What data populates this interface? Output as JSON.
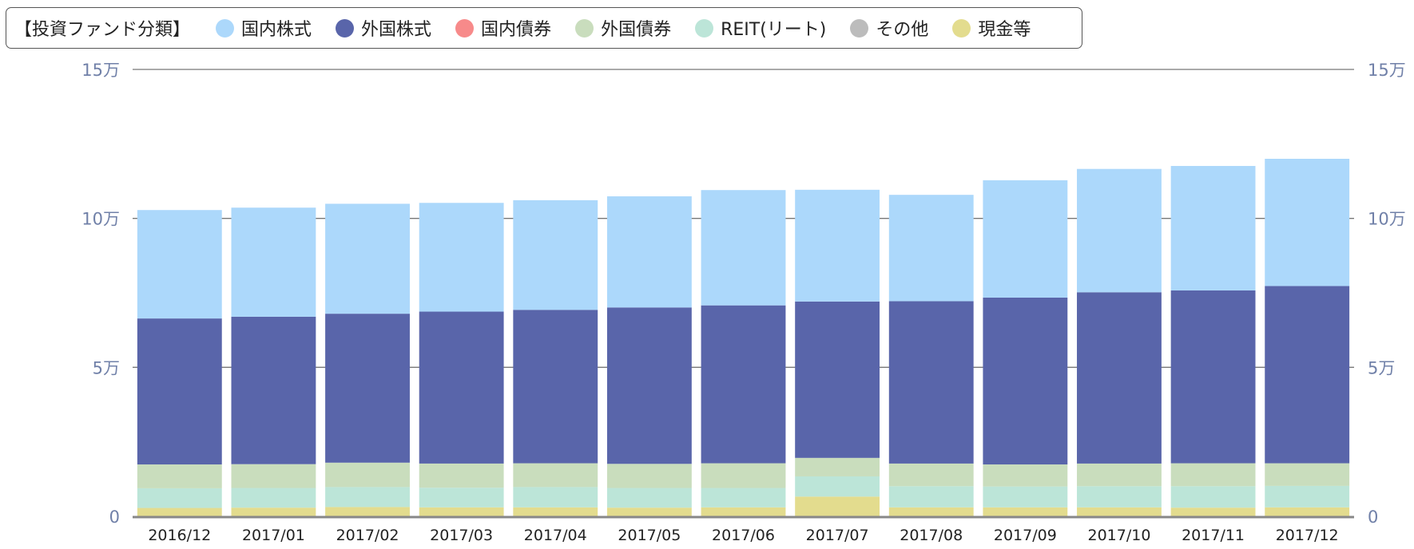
{
  "legend": {
    "title": "【投資ファンド分類】",
    "items": [
      {
        "label": "国内株式",
        "color": "#acd8fb"
      },
      {
        "label": "外国株式",
        "color": "#5965aa"
      },
      {
        "label": "国内債券",
        "color": "#f78a8a"
      },
      {
        "label": "外国債券",
        "color": "#c9ddbd"
      },
      {
        "label": "REIT(リート)",
        "color": "#bce5d8"
      },
      {
        "label": "その他",
        "color": "#bcbcbc"
      },
      {
        "label": "現金等",
        "color": "#e3dc8e"
      }
    ]
  },
  "chart_data": {
    "type": "bar",
    "stacked": true,
    "categories": [
      "2016/12",
      "2017/01",
      "2017/02",
      "2017/03",
      "2017/04",
      "2017/05",
      "2017/06",
      "2017/07",
      "2017/08",
      "2017/09",
      "2017/10",
      "2017/11",
      "2017/12"
    ],
    "y_ticks": [
      "0",
      "5万",
      "10万",
      "15万"
    ],
    "y_tick_values": [
      0,
      50000,
      100000,
      150000
    ],
    "ylim": [
      0,
      150000
    ],
    "grid": true,
    "legend_position": "top-left",
    "series": [
      {
        "name": "現金等",
        "color": "#e3dc8e",
        "values": [
          2800,
          2900,
          3100,
          3000,
          3000,
          2900,
          3000,
          6600,
          3000,
          3000,
          3000,
          2900,
          3000
        ]
      },
      {
        "name": "その他",
        "color": "#bcbcbc",
        "values": [
          0,
          0,
          0,
          0,
          0,
          0,
          0,
          0,
          0,
          0,
          0,
          0,
          0
        ]
      },
      {
        "name": "REIT(リート)",
        "color": "#bce5d8",
        "values": [
          6600,
          6600,
          6700,
          6600,
          6800,
          6600,
          6500,
          6800,
          7100,
          7000,
          7100,
          7200,
          7200
        ]
      },
      {
        "name": "外国債券",
        "color": "#c9ddbd",
        "values": [
          8000,
          8000,
          8200,
          8100,
          8000,
          8100,
          8300,
          6200,
          7600,
          7400,
          7600,
          7700,
          7600
        ]
      },
      {
        "name": "国内債券",
        "color": "#f78a8a",
        "values": [
          0,
          0,
          0,
          0,
          0,
          0,
          0,
          0,
          0,
          0,
          0,
          0,
          0
        ]
      },
      {
        "name": "外国株式",
        "color": "#5965aa",
        "values": [
          49000,
          49500,
          50000,
          51000,
          51500,
          52500,
          53000,
          52500,
          54500,
          56000,
          57500,
          58000,
          59500
        ]
      },
      {
        "name": "国内株式",
        "color": "#acd8fb",
        "values": [
          36400,
          36600,
          36900,
          36500,
          36800,
          37300,
          38700,
          37500,
          35700,
          39400,
          41400,
          41800,
          42700
        ]
      }
    ]
  }
}
